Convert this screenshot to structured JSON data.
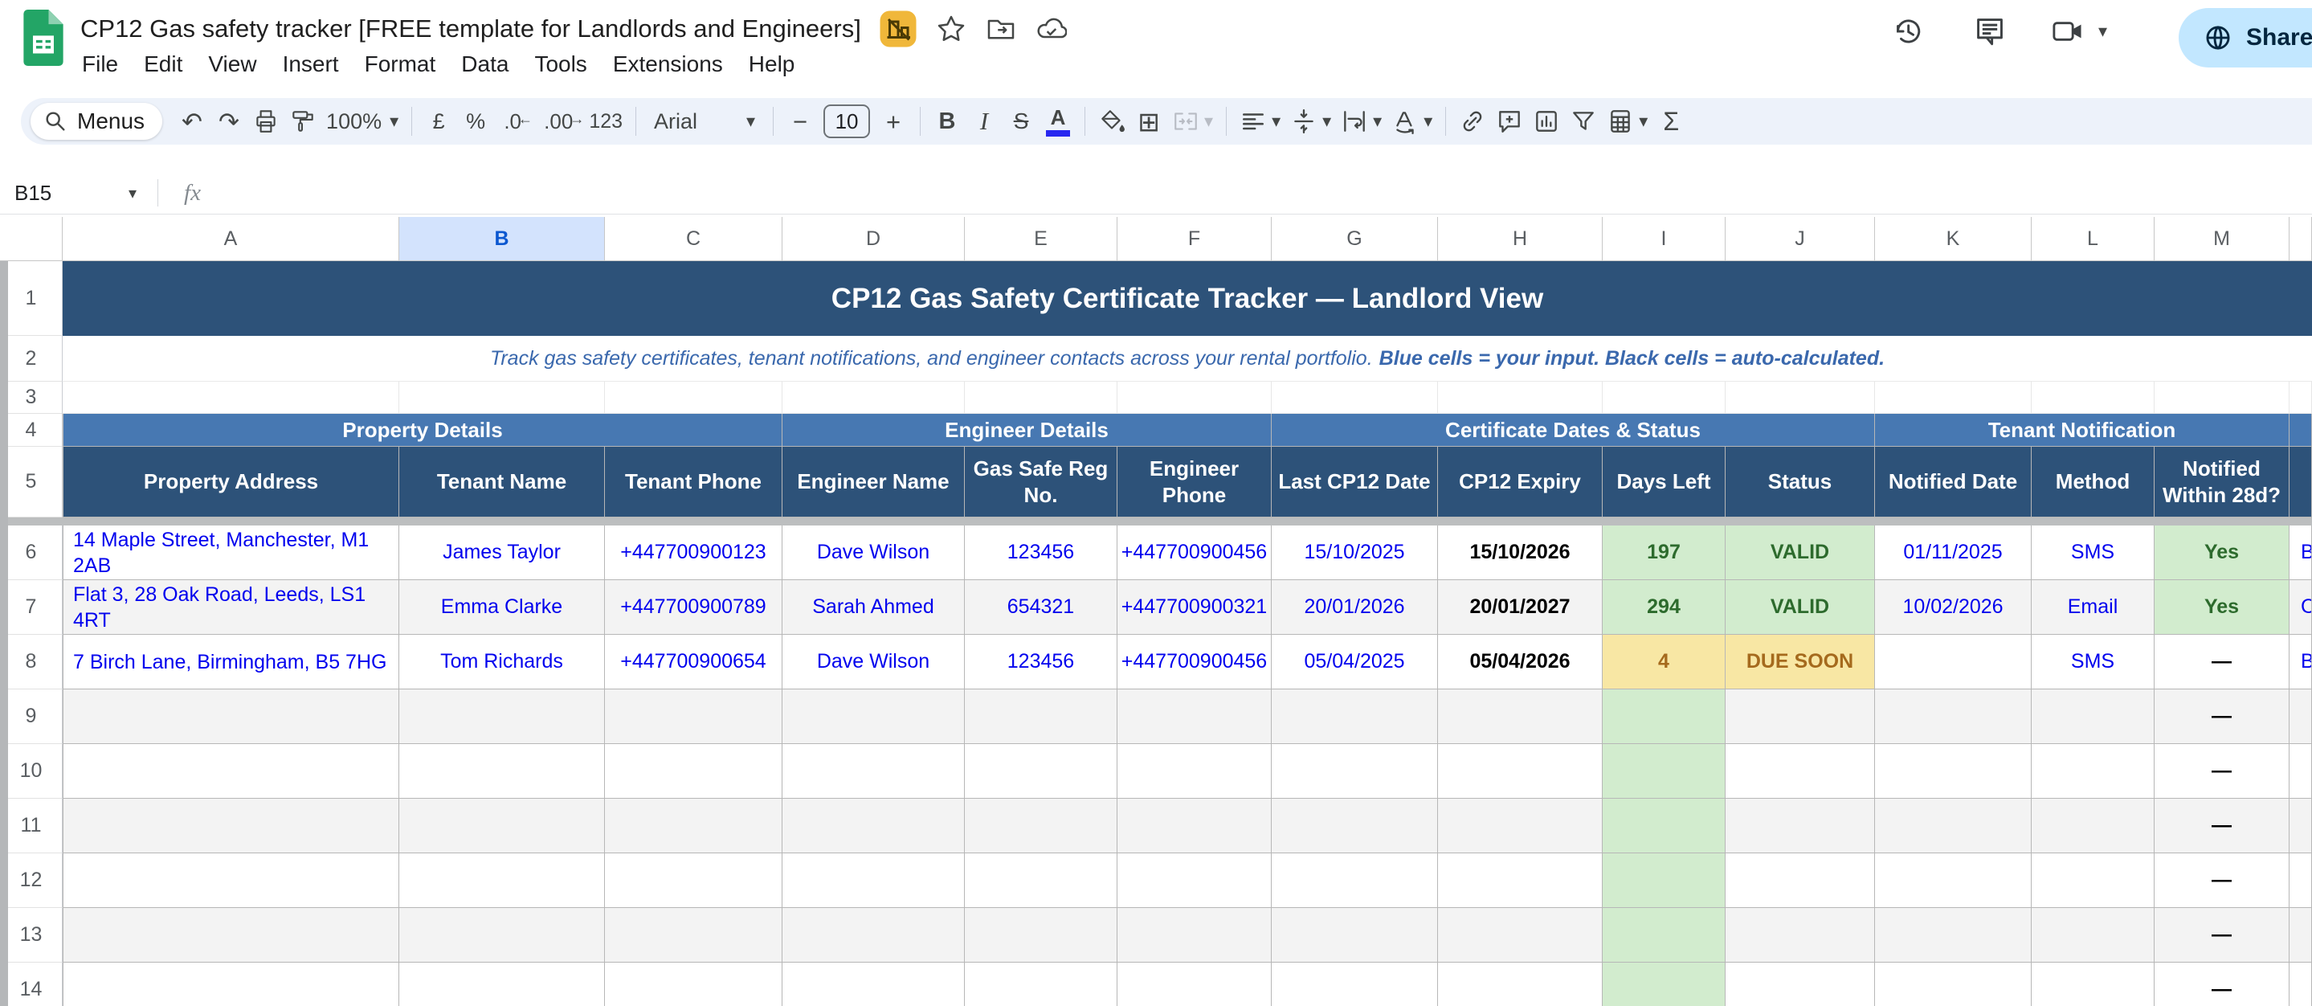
{
  "header": {
    "doc_title": "CP12 Gas safety tracker [FREE template for Landlords and Engineers]",
    "menus": [
      "File",
      "Edit",
      "View",
      "Insert",
      "Format",
      "Data",
      "Tools",
      "Extensions",
      "Help"
    ],
    "share_label": "Share"
  },
  "toolbar": {
    "menus_label": "Menus",
    "zoom": "100%",
    "currency": "£",
    "percent": "%",
    "dec_dec": ".0",
    "dec_inc": ".00",
    "more_formats": "123",
    "font": "Arial",
    "font_size": "10",
    "minus": "−",
    "plus": "+",
    "bold": "B",
    "italic": "I",
    "strike": "S",
    "text_color": "A",
    "borders": "⊞",
    "functions": "Σ"
  },
  "formula_bar": {
    "name_box": "B15",
    "fx": "fx"
  },
  "colors": {
    "navy_header": "#2d5279",
    "group_blue": "#4778b2",
    "good_bg": "#d2ecce",
    "good_text": "#2d6b2d",
    "warn_bg": "#f8e7a4",
    "warn_text": "#a56a1d",
    "input_blue": "#0202ee",
    "subtitle_blue": "#3a68ad",
    "selected_col_bg": "#d3e3fd",
    "selected_col_text": "#0b57d0",
    "toolbar_bg": "#edf2fa",
    "share_bg": "#c2e7ff",
    "band_gray": "#f3f3f3"
  },
  "grid": {
    "col_letters": [
      "A",
      "B",
      "C",
      "D",
      "E",
      "F",
      "G",
      "H",
      "I",
      "J",
      "K",
      "L",
      "M",
      ""
    ],
    "selected_column": "B",
    "banner": "CP12 Gas Safety Certificate Tracker — Landlord View",
    "subtitle_regular": "Track gas safety certificates, tenant notifications, and engineer contacts across your rental portfolio.",
    "subtitle_bold": "Blue cells = your input. Black cells = auto-calculated.",
    "groups": [
      {
        "label": "Property Details",
        "cols": 3
      },
      {
        "label": "Engineer Details",
        "cols": 3
      },
      {
        "label": "Certificate Dates & Status",
        "cols": 4
      },
      {
        "label": "Tenant Notification",
        "cols": 3
      },
      {
        "label": "",
        "cols": 1
      }
    ],
    "headers": [
      "Property Address",
      "Tenant Name",
      "Tenant Phone",
      "Engineer Name",
      "Gas Safe Reg No.",
      "Engineer Phone",
      "Last CP12 Date",
      "CP12 Expiry",
      "Days Left",
      "Status",
      "Notified Date",
      "Method",
      "Notified Within 28d?",
      ""
    ],
    "rows": [
      {
        "n": "6",
        "band": false,
        "cells": [
          {
            "t": "14 Maple Street, Manchester, M1 2AB",
            "s": "input left"
          },
          {
            "t": "James Taylor",
            "s": "input"
          },
          {
            "t": "+447700900123",
            "s": "input"
          },
          {
            "t": "Dave Wilson",
            "s": "input"
          },
          {
            "t": "123456",
            "s": "input"
          },
          {
            "t": "+447700900456",
            "s": "input"
          },
          {
            "t": "15/10/2025",
            "s": "input"
          },
          {
            "t": "15/10/2026",
            "s": "calc"
          },
          {
            "t": "197",
            "s": "good"
          },
          {
            "t": "VALID",
            "s": "good"
          },
          {
            "t": "01/11/2025",
            "s": "input"
          },
          {
            "t": "SMS",
            "s": "input"
          },
          {
            "t": "Yes",
            "s": "good"
          },
          {
            "t": "B",
            "s": "input clip"
          }
        ]
      },
      {
        "n": "7",
        "band": true,
        "cells": [
          {
            "t": "Flat 3, 28 Oak Road, Leeds, LS1 4RT",
            "s": "input left"
          },
          {
            "t": "Emma Clarke",
            "s": "input"
          },
          {
            "t": "+447700900789",
            "s": "input"
          },
          {
            "t": "Sarah Ahmed",
            "s": "input"
          },
          {
            "t": "654321",
            "s": "input"
          },
          {
            "t": "+447700900321",
            "s": "input"
          },
          {
            "t": "20/01/2026",
            "s": "input"
          },
          {
            "t": "20/01/2027",
            "s": "calc"
          },
          {
            "t": "294",
            "s": "good"
          },
          {
            "t": "VALID",
            "s": "good"
          },
          {
            "t": "10/02/2026",
            "s": "input"
          },
          {
            "t": "Email",
            "s": "input"
          },
          {
            "t": "Yes",
            "s": "good"
          },
          {
            "t": "C",
            "s": "input clip"
          }
        ]
      },
      {
        "n": "8",
        "band": false,
        "cells": [
          {
            "t": "7 Birch Lane, Birmingham, B5 7HG",
            "s": "input left"
          },
          {
            "t": "Tom Richards",
            "s": "input"
          },
          {
            "t": "+447700900654",
            "s": "input"
          },
          {
            "t": "Dave Wilson",
            "s": "input"
          },
          {
            "t": "123456",
            "s": "input"
          },
          {
            "t": "+447700900456",
            "s": "input"
          },
          {
            "t": "05/04/2025",
            "s": "input"
          },
          {
            "t": "05/04/2026",
            "s": "calc"
          },
          {
            "t": "4",
            "s": "warn"
          },
          {
            "t": "DUE SOON",
            "s": "warn"
          },
          {
            "t": "",
            "s": ""
          },
          {
            "t": "SMS",
            "s": "input"
          },
          {
            "t": "—",
            "s": "calc"
          },
          {
            "t": "B",
            "s": "input clip"
          }
        ]
      },
      {
        "n": "9",
        "band": true,
        "cells": [
          {
            "t": "",
            "s": ""
          },
          {
            "t": "",
            "s": ""
          },
          {
            "t": "",
            "s": ""
          },
          {
            "t": "",
            "s": ""
          },
          {
            "t": "",
            "s": ""
          },
          {
            "t": "",
            "s": ""
          },
          {
            "t": "",
            "s": ""
          },
          {
            "t": "",
            "s": ""
          },
          {
            "t": "",
            "s": "goodbg"
          },
          {
            "t": "",
            "s": ""
          },
          {
            "t": "",
            "s": ""
          },
          {
            "t": "",
            "s": ""
          },
          {
            "t": "—",
            "s": "calc"
          },
          {
            "t": "",
            "s": ""
          }
        ]
      },
      {
        "n": "10",
        "band": false,
        "cells": [
          {
            "t": "",
            "s": ""
          },
          {
            "t": "",
            "s": ""
          },
          {
            "t": "",
            "s": ""
          },
          {
            "t": "",
            "s": ""
          },
          {
            "t": "",
            "s": ""
          },
          {
            "t": "",
            "s": ""
          },
          {
            "t": "",
            "s": ""
          },
          {
            "t": "",
            "s": ""
          },
          {
            "t": "",
            "s": "goodbg"
          },
          {
            "t": "",
            "s": ""
          },
          {
            "t": "",
            "s": ""
          },
          {
            "t": "",
            "s": ""
          },
          {
            "t": "—",
            "s": "calc"
          },
          {
            "t": "",
            "s": ""
          }
        ]
      },
      {
        "n": "11",
        "band": true,
        "cells": [
          {
            "t": "",
            "s": ""
          },
          {
            "t": "",
            "s": ""
          },
          {
            "t": "",
            "s": ""
          },
          {
            "t": "",
            "s": ""
          },
          {
            "t": "",
            "s": ""
          },
          {
            "t": "",
            "s": ""
          },
          {
            "t": "",
            "s": ""
          },
          {
            "t": "",
            "s": ""
          },
          {
            "t": "",
            "s": "goodbg"
          },
          {
            "t": "",
            "s": ""
          },
          {
            "t": "",
            "s": ""
          },
          {
            "t": "",
            "s": ""
          },
          {
            "t": "—",
            "s": "calc"
          },
          {
            "t": "",
            "s": ""
          }
        ]
      },
      {
        "n": "12",
        "band": false,
        "cells": [
          {
            "t": "",
            "s": ""
          },
          {
            "t": "",
            "s": ""
          },
          {
            "t": "",
            "s": ""
          },
          {
            "t": "",
            "s": ""
          },
          {
            "t": "",
            "s": ""
          },
          {
            "t": "",
            "s": ""
          },
          {
            "t": "",
            "s": ""
          },
          {
            "t": "",
            "s": ""
          },
          {
            "t": "",
            "s": "goodbg"
          },
          {
            "t": "",
            "s": ""
          },
          {
            "t": "",
            "s": ""
          },
          {
            "t": "",
            "s": ""
          },
          {
            "t": "—",
            "s": "calc"
          },
          {
            "t": "",
            "s": ""
          }
        ]
      },
      {
        "n": "13",
        "band": true,
        "cells": [
          {
            "t": "",
            "s": ""
          },
          {
            "t": "",
            "s": ""
          },
          {
            "t": "",
            "s": ""
          },
          {
            "t": "",
            "s": ""
          },
          {
            "t": "",
            "s": ""
          },
          {
            "t": "",
            "s": ""
          },
          {
            "t": "",
            "s": ""
          },
          {
            "t": "",
            "s": ""
          },
          {
            "t": "",
            "s": "goodbg"
          },
          {
            "t": "",
            "s": ""
          },
          {
            "t": "",
            "s": ""
          },
          {
            "t": "",
            "s": ""
          },
          {
            "t": "—",
            "s": "calc"
          },
          {
            "t": "",
            "s": ""
          }
        ]
      },
      {
        "n": "14",
        "band": false,
        "cells": [
          {
            "t": "",
            "s": ""
          },
          {
            "t": "",
            "s": ""
          },
          {
            "t": "",
            "s": ""
          },
          {
            "t": "",
            "s": ""
          },
          {
            "t": "",
            "s": ""
          },
          {
            "t": "",
            "s": ""
          },
          {
            "t": "",
            "s": ""
          },
          {
            "t": "",
            "s": ""
          },
          {
            "t": "",
            "s": "goodbg"
          },
          {
            "t": "",
            "s": ""
          },
          {
            "t": "",
            "s": ""
          },
          {
            "t": "",
            "s": ""
          },
          {
            "t": "—",
            "s": "calc"
          },
          {
            "t": "",
            "s": ""
          }
        ]
      }
    ]
  }
}
